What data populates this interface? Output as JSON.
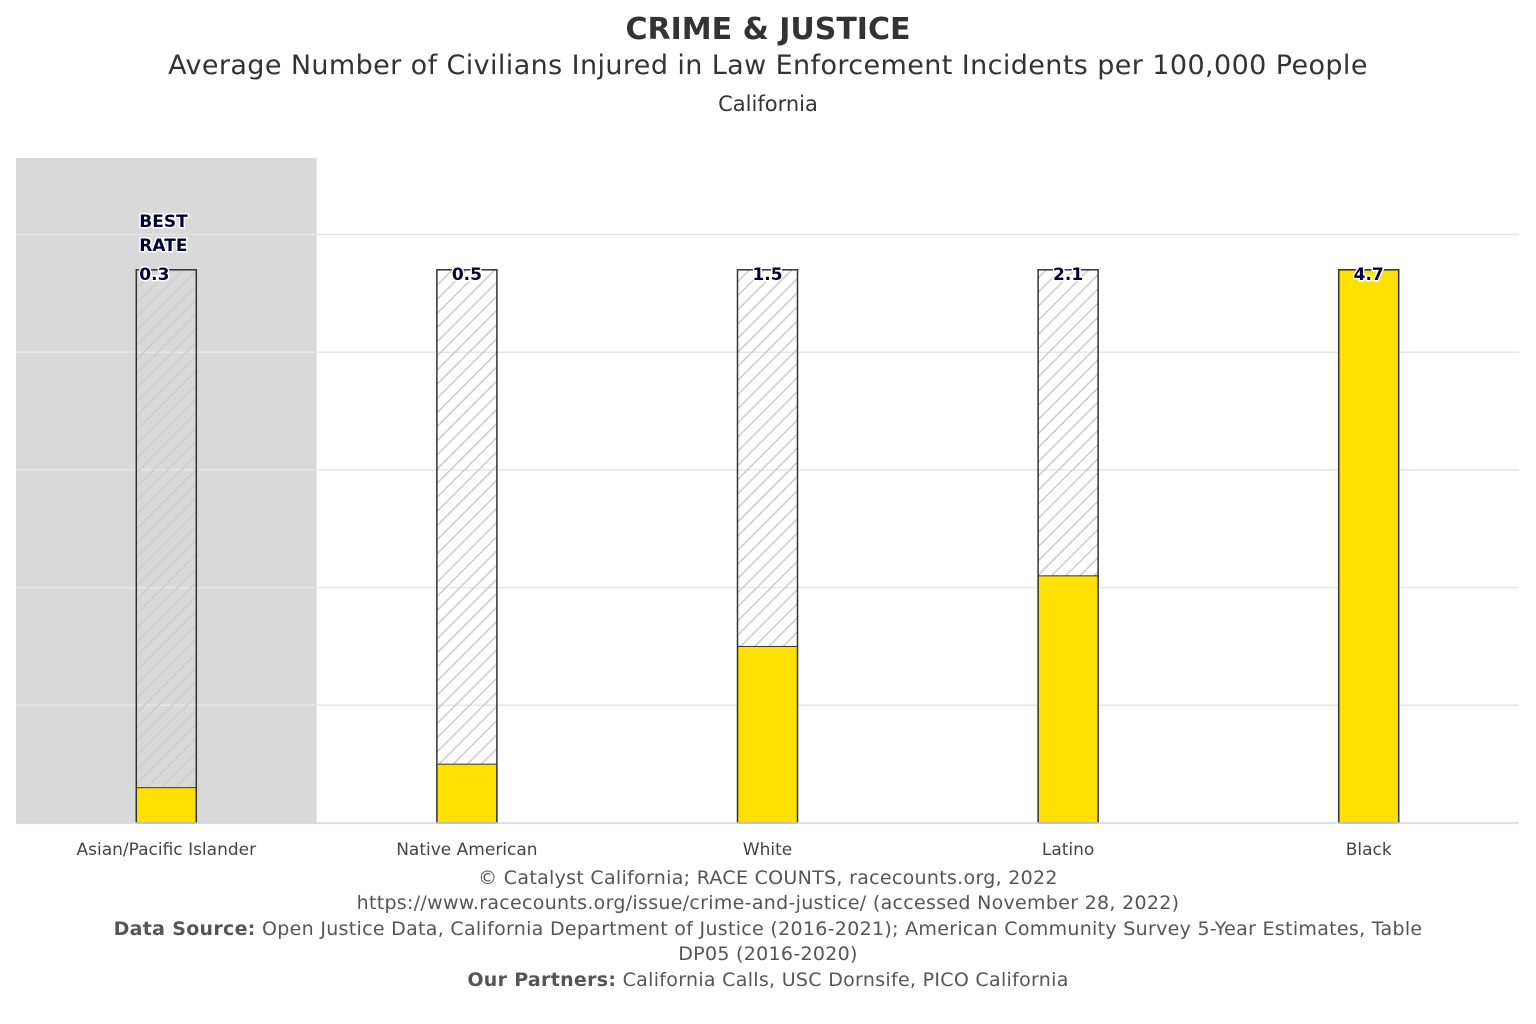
{
  "chart_data": {
    "type": "bar",
    "title": "CRIME & JUSTICE",
    "subtitle": "Average Number of Civilians Injured in Law Enforcement Incidents per 100,000 People",
    "region": "California",
    "categories": [
      "Asian/Pacific Islander",
      "Native American",
      "White",
      "Latino",
      "Black"
    ],
    "values": [
      0.3,
      0.5,
      1.5,
      2.1,
      4.7
    ],
    "value_labels": [
      "0.3",
      "0.5",
      "1.5",
      "2.1",
      "4.7"
    ],
    "best_rate_label": [
      "BEST",
      "RATE"
    ],
    "best_index": 0,
    "max_value": 4.7,
    "ylim": [
      0,
      5.65
    ],
    "gridlines": [
      1,
      2,
      3,
      4,
      5
    ],
    "xlabel": "",
    "ylabel": "",
    "colors": {
      "bar": "#FFE000",
      "highlight_band": "#D9D9D9",
      "hatch": "#CCCCCC",
      "grid": "#E6E6E6",
      "axis": "#CCD6EB",
      "label": "#000033"
    }
  },
  "footer": {
    "copyright": "© Catalyst California; RACE COUNTS, racecounts.org, 2022",
    "url": "https://www.racecounts.org/issue/crime-and-justice/ (accessed November 28, 2022)",
    "source_label": "Data Source:",
    "source_text": " Open Justice Data, California Department of Justice (2016-2021); American Community Survey 5-Year Estimates, Table",
    "source_text2": "DP05 (2016-2020)",
    "partners_label": "Our Partners:",
    "partners_text": " California Calls, USC Dornsife, PICO California"
  }
}
